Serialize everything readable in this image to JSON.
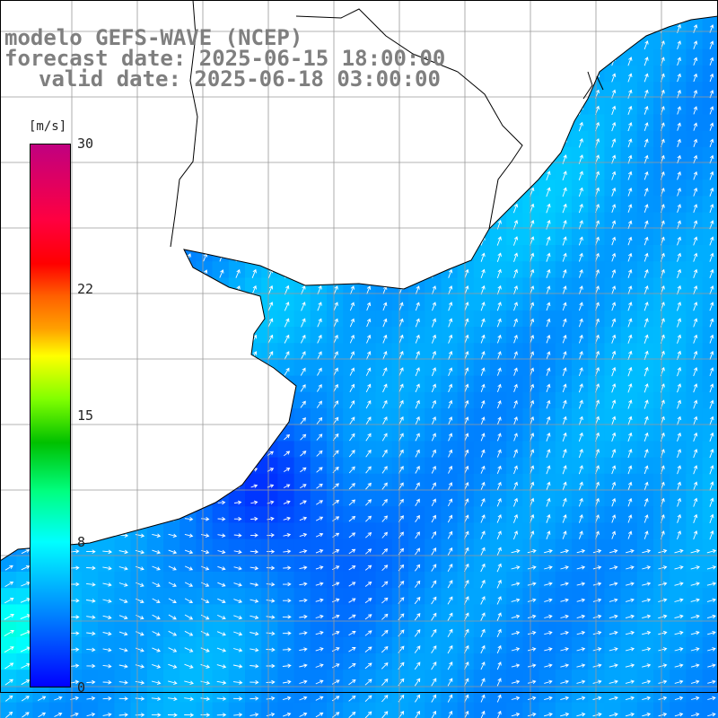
{
  "title": {
    "line1": "modelo GEFS-WAVE (NCEP)",
    "line2": "forecast date: 2025-06-15 18:00:00",
    "line3": "valid date: 2025-06-18 03:00:00"
  },
  "colorbar": {
    "unit": "[m/s]",
    "ticks": [
      {
        "value": 30,
        "label": "30"
      },
      {
        "value": 22,
        "label": "22"
      },
      {
        "value": 15,
        "label": "15"
      },
      {
        "value": 8,
        "label": "8"
      },
      {
        "value": 0,
        "label": "0"
      }
    ],
    "range": [
      0,
      30
    ]
  },
  "colors": {
    "land": "#ffffff",
    "grid": "#9a9a9a",
    "coast": "#000000",
    "arrow": "#ffffff",
    "title": "#7f7f7f"
  },
  "map": {
    "dominant_speed_ms": 6,
    "min_speed_ms": 3,
    "max_speed_ms": 10
  }
}
